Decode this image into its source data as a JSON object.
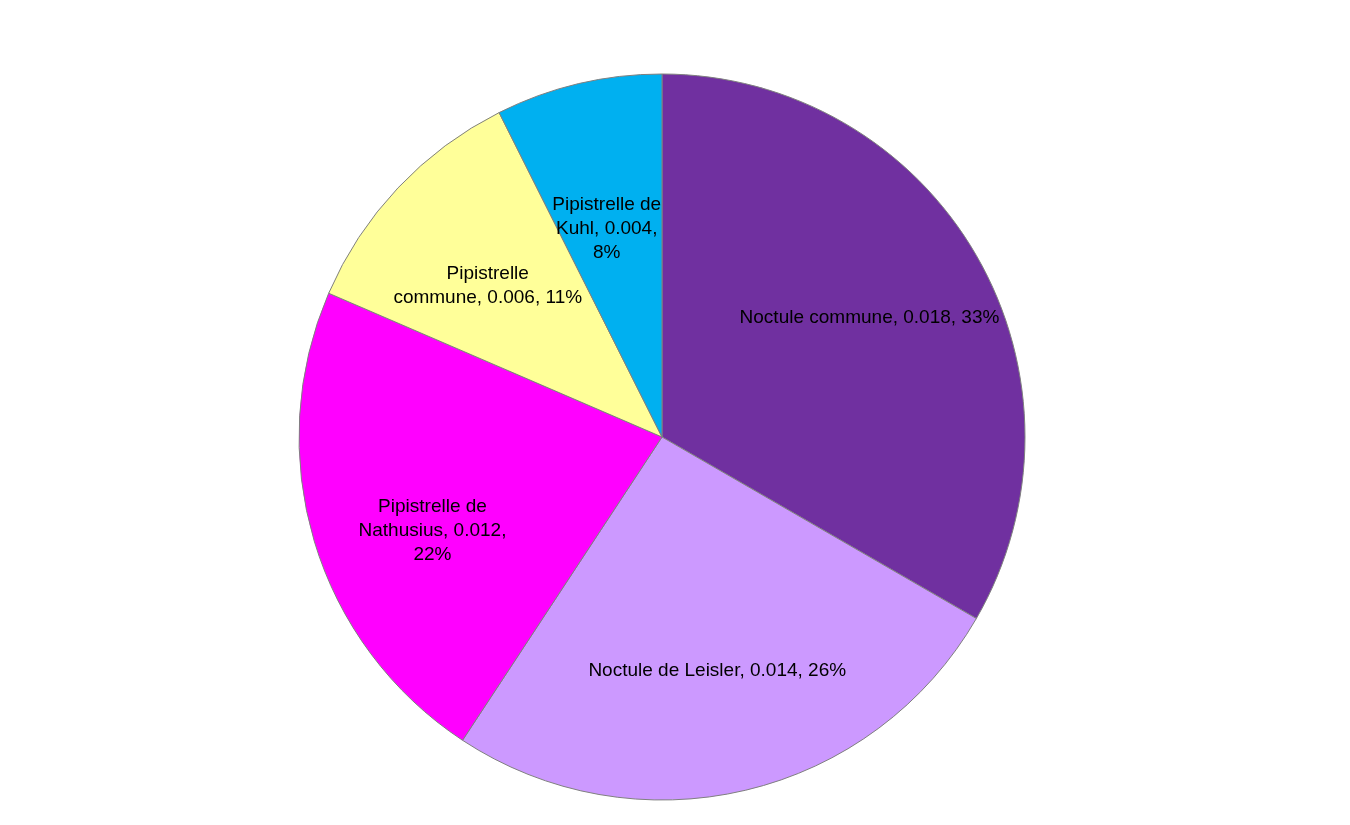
{
  "chart_data": {
    "type": "pie",
    "categories": [
      "Noctule commune",
      "Noctule de Leisler",
      "Pipistrelle de Nathusius",
      "Pipistrelle commune",
      "Pipistrelle de Kuhl"
    ],
    "values": [
      0.018,
      0.014,
      0.012,
      0.006,
      0.004
    ],
    "value_labels": [
      "0.018, 33%",
      "0.014, 26%",
      "0.012, 22%",
      "0.006, 11%",
      "0.004, 8%"
    ],
    "colors": [
      "#7030a0",
      "#cc99ff",
      "#ff00ff",
      "#ffff99",
      "#00b0f0"
    ],
    "legend": false
  }
}
